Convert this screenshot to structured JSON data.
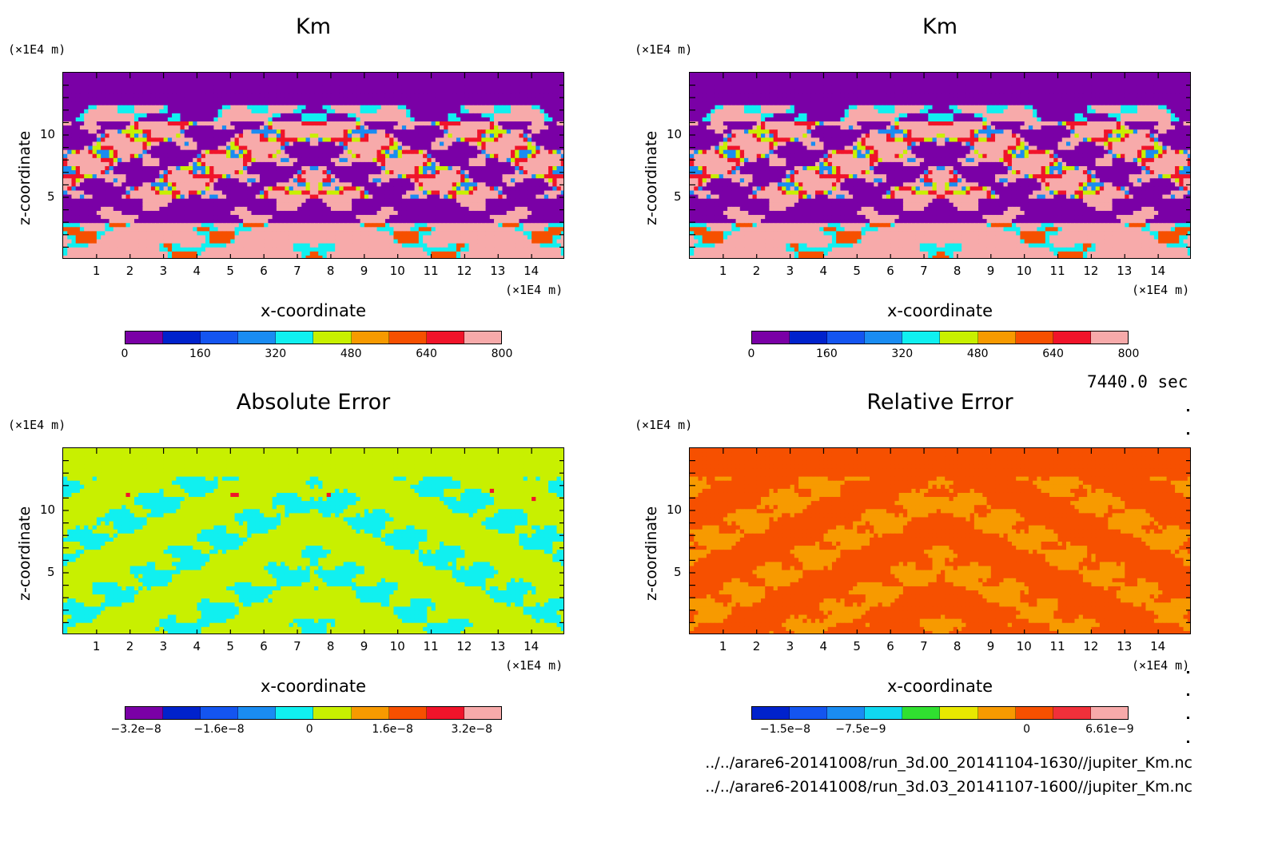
{
  "time_label": "7440.0 sec",
  "files": [
    "../../arare6-20141008/run_3d.00_20141104-1630//jupiter_Km.nc",
    "../../arare6-20141008/run_3d.03_20141107-1600//jupiter_Km.nc"
  ],
  "chart_data": [
    {
      "type": "heatmap",
      "title": "Km",
      "xlabel": "x-coordinate",
      "ylabel": "z-coordinate",
      "x_unit": "(×1E4 m)",
      "y_unit": "(×1E4 m)",
      "xlim": [
        0,
        15
      ],
      "ylim": [
        0,
        15
      ],
      "x_ticks": [
        "1",
        "2",
        "3",
        "4",
        "5",
        "6",
        "7",
        "8",
        "9",
        "10",
        "11",
        "12",
        "13",
        "14"
      ],
      "y_ticks": [
        "5",
        "10"
      ],
      "colorbar": {
        "colors": [
          "#7a00a6",
          "#0022cc",
          "#1455f0",
          "#1a8cf2",
          "#10f0f0",
          "#c8f000",
          "#f79a00",
          "#f65000",
          "#f0142a",
          "#f7aaaa"
        ],
        "tick_labels": [
          "0",
          "160",
          "320",
          "480",
          "640",
          "800"
        ],
        "range": [
          0,
          800
        ]
      },
      "background_value_band": "purple above z≈12.5, mixed turbulent field below"
    },
    {
      "type": "heatmap",
      "title": "Km",
      "xlabel": "x-coordinate",
      "ylabel": "z-coordinate",
      "x_unit": "(×1E4 m)",
      "y_unit": "(×1E4 m)",
      "xlim": [
        0,
        15
      ],
      "ylim": [
        0,
        15
      ],
      "x_ticks": [
        "1",
        "2",
        "3",
        "4",
        "5",
        "6",
        "7",
        "8",
        "9",
        "10",
        "11",
        "12",
        "13",
        "14"
      ],
      "y_ticks": [
        "5",
        "10"
      ],
      "colorbar": {
        "colors": [
          "#7a00a6",
          "#0022cc",
          "#1455f0",
          "#1a8cf2",
          "#10f0f0",
          "#c8f000",
          "#f79a00",
          "#f65000",
          "#f0142a",
          "#f7aaaa"
        ],
        "tick_labels": [
          "0",
          "160",
          "320",
          "480",
          "640",
          "800"
        ],
        "range": [
          0,
          800
        ]
      }
    },
    {
      "type": "heatmap",
      "title": "Absolute Error",
      "xlabel": "x-coordinate",
      "ylabel": "z-coordinate",
      "x_unit": "(×1E4 m)",
      "y_unit": "(×1E4 m)",
      "xlim": [
        0,
        15
      ],
      "ylim": [
        0,
        15
      ],
      "x_ticks": [
        "1",
        "2",
        "3",
        "4",
        "5",
        "6",
        "7",
        "8",
        "9",
        "10",
        "11",
        "12",
        "13",
        "14"
      ],
      "y_ticks": [
        "5",
        "10"
      ],
      "colorbar": {
        "colors": [
          "#7a00a6",
          "#0022cc",
          "#1455f0",
          "#1a8cf2",
          "#10f0f0",
          "#c8f000",
          "#f79a00",
          "#f65000",
          "#f0142a",
          "#f7aaaa"
        ],
        "tick_labels": [
          "−3.2e−8",
          "−1.6e−8",
          "0",
          "1.6e−8",
          "3.2e−8"
        ],
        "range": [
          -3.2e-08,
          3.2e-08
        ]
      }
    },
    {
      "type": "heatmap",
      "title": "Relative Error",
      "xlabel": "x-coordinate",
      "ylabel": "z-coordinate",
      "x_unit": "(×1E4 m)",
      "y_unit": "(×1E4 m)",
      "xlim": [
        0,
        15
      ],
      "ylim": [
        0,
        15
      ],
      "x_ticks": [
        "1",
        "2",
        "3",
        "4",
        "5",
        "6",
        "7",
        "8",
        "9",
        "10",
        "11",
        "12",
        "13",
        "14"
      ],
      "y_ticks": [
        "5",
        "10"
      ],
      "colorbar": {
        "colors": [
          "#0022cc",
          "#1455f0",
          "#1a8cf2",
          "#10d8f0",
          "#30e030",
          "#e8e800",
          "#f79a00",
          "#f65000",
          "#f0303a",
          "#f7aaaa"
        ],
        "tick_labels": [
          "−1.5e−8",
          "−7.5e−9",
          "0",
          "6.61e−9"
        ],
        "range": [
          -1.8e-08,
          6.61e-09
        ]
      }
    }
  ]
}
